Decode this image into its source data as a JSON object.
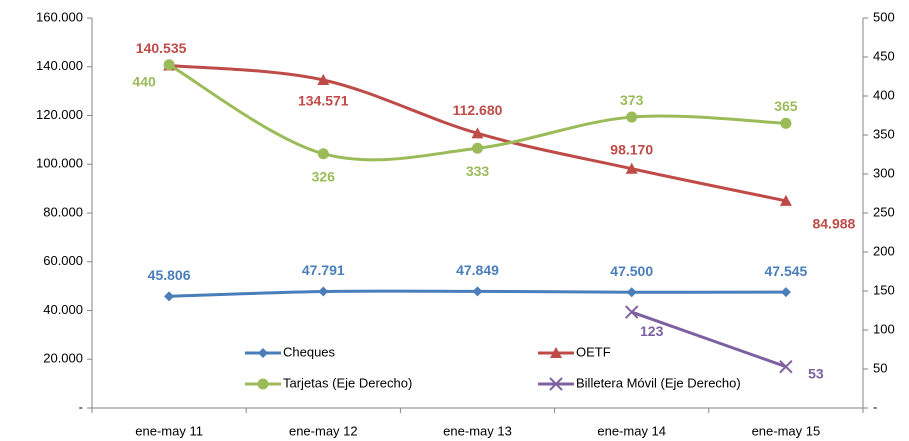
{
  "chart_data": {
    "type": "line",
    "categories": [
      "ene-may 11",
      "ene-may 12",
      "ene-may 13",
      "ene-may 14",
      "ene-may 15"
    ],
    "series": [
      {
        "name": "Cheques",
        "color": "#4a7ebb",
        "marker": "diamond",
        "axis": "y",
        "values": [
          45806,
          47791,
          47849,
          47500,
          47545
        ],
        "value_labels": [
          "45.806",
          "47.791",
          "47.849",
          "47.500",
          "47.545"
        ]
      },
      {
        "name": "OETF",
        "color": "#be4b48",
        "marker": "triangle",
        "axis": "y",
        "values": [
          140535,
          134571,
          112680,
          98170,
          84988
        ],
        "value_labels": [
          "140.535",
          "134.571",
          "112.680",
          "98.170",
          "84.988"
        ]
      },
      {
        "name": "Tarjetas (Eje Derecho)",
        "color": "#9bbb59",
        "marker": "circle",
        "axis": "y2",
        "values": [
          440,
          326,
          333,
          373,
          365
        ]
      },
      {
        "name": "Billetera Móvil (Eje Derecho)",
        "color": "#7d60a0",
        "marker": "x",
        "axis": "y2",
        "values": [
          null,
          null,
          null,
          123,
          53
        ]
      }
    ],
    "ylim": [
      0,
      160000
    ],
    "yticks": [
      {
        "value": 0,
        "label": "-"
      },
      {
        "value": 20000,
        "label": "20.000"
      },
      {
        "value": 40000,
        "label": "40.000"
      },
      {
        "value": 60000,
        "label": "60.000"
      },
      {
        "value": 80000,
        "label": "80.000"
      },
      {
        "value": 100000,
        "label": "100.000"
      },
      {
        "value": 120000,
        "label": "120.000"
      },
      {
        "value": 140000,
        "label": "140.000"
      },
      {
        "value": 160000,
        "label": "160.000"
      }
    ],
    "y2lim": [
      0,
      500
    ],
    "y2ticks": [
      {
        "value": 0,
        "label": "-"
      },
      50,
      100,
      150,
      200,
      250,
      300,
      350,
      400,
      450,
      500
    ],
    "legend": "lower center",
    "grid": false
  }
}
